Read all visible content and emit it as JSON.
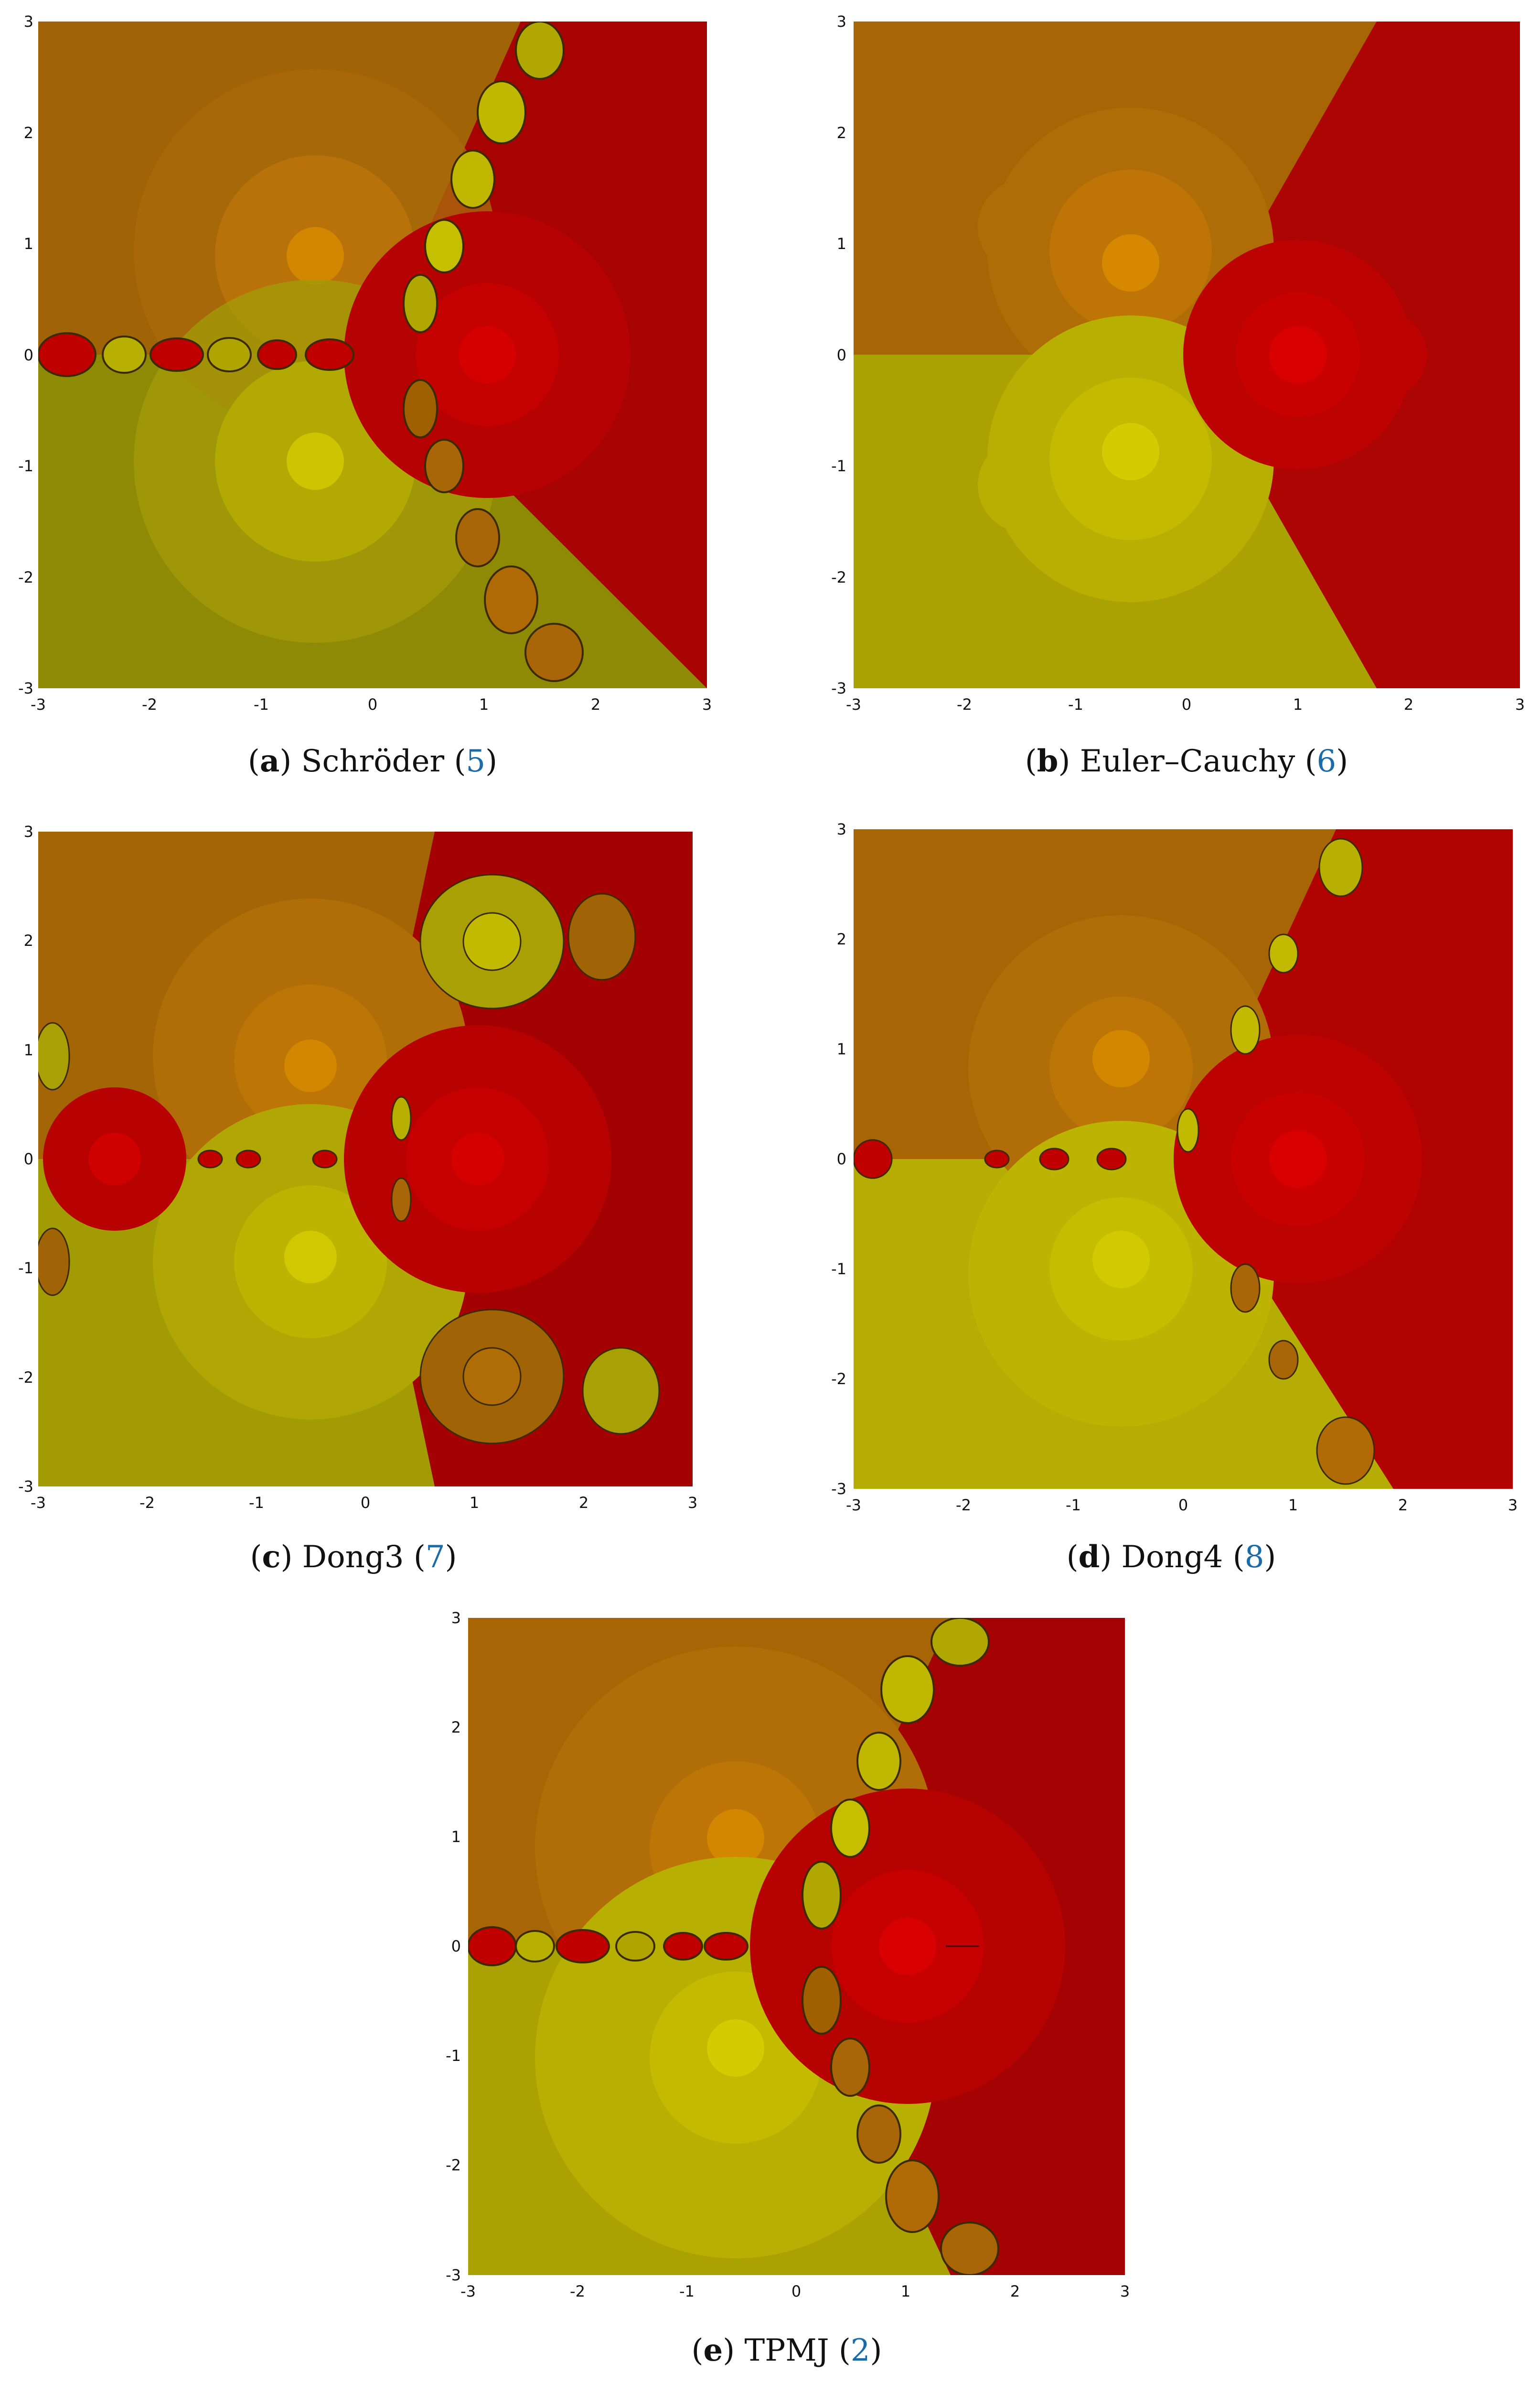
{
  "x_ticks": [
    "-3",
    "-2",
    "-1",
    "0",
    "1",
    "2",
    "3"
  ],
  "y_ticks": [
    "3",
    "2",
    "1",
    "0",
    "-1",
    "-2",
    "-3"
  ],
  "colors": {
    "root1_basin": "#b76a00",
    "root2_basin": "#c4b300",
    "root3_basin": "#c40000"
  },
  "panels": [
    {
      "letter": "a",
      "name": "Schröder",
      "ref": "5"
    },
    {
      "letter": "b",
      "name": "Euler–Cauchy",
      "ref": "6"
    },
    {
      "letter": "c",
      "name": "Dong3",
      "ref": "7"
    },
    {
      "letter": "d",
      "name": "Dong4",
      "ref": "8"
    },
    {
      "letter": "e",
      "name": "TPMJ",
      "ref": "2"
    }
  ]
}
